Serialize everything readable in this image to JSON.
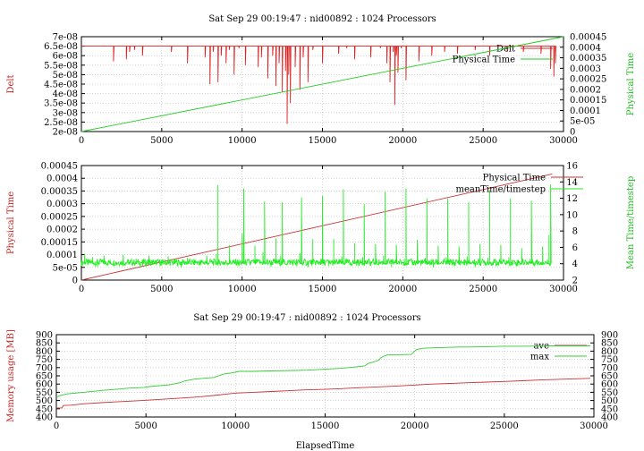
{
  "chart_data": [
    {
      "type": "line",
      "title": "Sat Sep 29 00:19:47 : nid00892 : 1024 Processors",
      "xlabel": "",
      "ylabel": "Delt",
      "y2label": "Physical Time",
      "xlim": [
        0,
        30000
      ],
      "ylim": [
        2e-08,
        7e-08
      ],
      "y2lim": [
        0,
        0.00045
      ],
      "x_ticks": [
        "0",
        "5000",
        "10000",
        "15000",
        "20000",
        "25000",
        "30000"
      ],
      "y_ticks": [
        "2e-08",
        "2.5e-08",
        "3e-08",
        "3.5e-08",
        "4e-08",
        "4.5e-08",
        "5e-08",
        "5.5e-08",
        "6e-08",
        "6.5e-08",
        "7e-08"
      ],
      "y2_ticks": [
        "0",
        "5e-05",
        "0.0001",
        "0.00015",
        "0.0002",
        "0.00025",
        "0.0003",
        "0.00035",
        "0.0004",
        "0.00045"
      ],
      "grid": true,
      "legend_position": "top-right",
      "colors": {
        "primary": "#dd2222",
        "secondary": "#22cc22",
        "axis_left": "#cc2222",
        "axis_right": "#22bb22"
      },
      "series": [
        {
          "name": "Delt",
          "axis": "left",
          "baseline": 6.5e-08,
          "x": [
            0,
            1700,
            2000,
            2100,
            2500,
            2800,
            3000,
            3200,
            3300,
            3600,
            3800,
            4200,
            5200,
            5600,
            6200,
            6600,
            7000,
            7700,
            8000,
            8200,
            8500,
            8700,
            9000,
            9200,
            9500,
            9800,
            10200,
            10600,
            11000,
            11200,
            11600,
            11900,
            12100,
            12300,
            12500,
            12700,
            12800,
            12900,
            13000,
            13300,
            13600,
            13800,
            14100,
            14400,
            15000,
            15600,
            16000,
            16500,
            17000,
            17500,
            18000,
            18600,
            19000,
            19200,
            19400,
            19500,
            19600,
            19700,
            19900,
            20200,
            20600,
            21000,
            21300,
            21800,
            22200,
            22600,
            23000,
            23400,
            24000,
            24500,
            25000,
            25400,
            26000,
            26500,
            27000,
            27500,
            28200,
            28600,
            28900,
            29200,
            29400,
            29500
          ],
          "values": [
            6.5e-08,
            6.5e-08,
            5.7e-08,
            6.5e-08,
            6.5e-08,
            5.8e-08,
            6.2e-08,
            6.5e-08,
            6.3e-08,
            6.5e-08,
            6e-08,
            6.5e-08,
            6.5e-08,
            6.2e-08,
            6.5e-08,
            5.6e-08,
            6.5e-08,
            5.9e-08,
            4.5e-08,
            6.2e-08,
            4.6e-08,
            6e-08,
            5.6e-08,
            6.3e-08,
            5e-08,
            6.4e-08,
            5.5e-08,
            6.5e-08,
            5.4e-08,
            5.9e-08,
            4.8e-08,
            6e-08,
            4.4e-08,
            5.6e-08,
            4.1e-08,
            5.2e-08,
            2.4e-08,
            5e-08,
            3.5e-08,
            5.4e-08,
            4.2e-08,
            5.9e-08,
            4.6e-08,
            6.3e-08,
            5.6e-08,
            6.5e-08,
            6.1e-08,
            6.4e-08,
            5.8e-08,
            6.5e-08,
            5.9e-08,
            6.4e-08,
            5.6e-08,
            4.6e-08,
            6.2e-08,
            3.4e-08,
            6e-08,
            5.1e-08,
            6.4e-08,
            4.7e-08,
            6.5e-08,
            5.7e-08,
            6.5e-08,
            6e-08,
            6.5e-08,
            6.2e-08,
            6.5e-08,
            6.1e-08,
            6.5e-08,
            6.3e-08,
            6.5e-08,
            6e-08,
            6.5e-08,
            6.2e-08,
            6.5e-08,
            6.2e-08,
            6.5e-08,
            6.1e-08,
            6.5e-08,
            5.3e-08,
            4.9e-08,
            5.6e-08
          ]
        },
        {
          "name": "Physical Time",
          "axis": "right",
          "x": [
            0,
            30000
          ],
          "values": [
            0,
            0.00045
          ]
        }
      ]
    },
    {
      "type": "line",
      "title": "",
      "xlabel": "",
      "ylabel": "Physical Time",
      "y2label": "Mean Time/timestep",
      "xlim": [
        0,
        30000
      ],
      "ylim": [
        0,
        0.00045
      ],
      "y2lim": [
        2,
        16
      ],
      "x_ticks": [
        "0",
        "5000",
        "10000",
        "15000",
        "20000",
        "25000",
        "30000"
      ],
      "y_ticks": [
        "0",
        "5e-05",
        "0.0001",
        "0.00015",
        "0.0002",
        "0.00025",
        "0.0003",
        "0.00035",
        "0.0004",
        "0.00045"
      ],
      "y2_ticks": [
        "2",
        "4",
        "6",
        "8",
        "10",
        "12",
        "14",
        "16"
      ],
      "grid": true,
      "legend_position": "top-right",
      "colors": {
        "primary": "#cc3333",
        "secondary": "#22ee22",
        "axis_left": "#cc2222",
        "axis_right": "#22bb22"
      },
      "series": [
        {
          "name": "Physical Time",
          "axis": "left",
          "x": [
            0,
            29300
          ],
          "values": [
            0,
            0.000417
          ]
        },
        {
          "name": "meanTime/timestep",
          "axis": "right",
          "baseline": 4.0,
          "x": [
            0,
            200,
            400,
            700,
            1000,
            1400,
            1800,
            2200,
            2600,
            3000,
            3400,
            3800,
            4200,
            4600,
            5000,
            5400,
            5800,
            6200,
            6600,
            7000,
            7400,
            7800,
            8200,
            8400,
            8500,
            8600,
            8900,
            9200,
            9500,
            9800,
            10000,
            10100,
            10200,
            10500,
            10800,
            11100,
            11300,
            11400,
            11500,
            11800,
            12100,
            12300,
            12400,
            12500,
            12800,
            13100,
            13400,
            13600,
            13700,
            13800,
            14100,
            14400,
            14700,
            14900,
            15000,
            15100,
            15400,
            15700,
            16000,
            16200,
            16300,
            16400,
            16700,
            17000,
            17300,
            17500,
            17600,
            17700,
            18000,
            18300,
            18600,
            18800,
            18900,
            19000,
            19300,
            19600,
            19900,
            20100,
            20200,
            20300,
            20600,
            20900,
            21200,
            21400,
            21500,
            21600,
            21900,
            22200,
            22500,
            22700,
            22800,
            22900,
            23200,
            23500,
            23800,
            24000,
            24100,
            24200,
            24500,
            24800,
            25100,
            25300,
            25400,
            25500,
            25800,
            26100,
            26400,
            26600,
            26700,
            26800,
            27100,
            27400,
            27700,
            27900,
            28000,
            28100,
            28400,
            28700,
            29000,
            29100,
            29200
          ],
          "values": [
            4.0,
            5.2,
            3.8,
            4.8,
            3.6,
            5.0,
            4.3,
            3.8,
            5.1,
            4.0,
            4.6,
            3.7,
            5.0,
            4.1,
            3.8,
            4.9,
            4.0,
            3.6,
            4.7,
            4.2,
            3.8,
            5.0,
            4.0,
            5.2,
            13.6,
            4.2,
            3.8,
            6.3,
            4.0,
            3.7,
            7.7,
            13.2,
            4.1,
            3.8,
            6.2,
            4.0,
            5.4,
            11.6,
            4.2,
            3.6,
            7.1,
            4.0,
            5.0,
            11.5,
            3.8,
            4.5,
            3.7,
            5.3,
            12.1,
            4.0,
            3.6,
            7.0,
            4.0,
            4.6,
            12.3,
            4.1,
            3.7,
            7.0,
            4.0,
            4.9,
            13.1,
            4.0,
            3.8,
            6.5,
            4.0,
            4.8,
            11.3,
            4.1,
            3.7,
            6.4,
            4.0,
            5.0,
            12.8,
            4.1,
            3.6,
            6.3,
            4.0,
            4.6,
            13.2,
            4.0,
            3.8,
            6.9,
            4.0,
            4.7,
            12.0,
            4.1,
            3.6,
            6.2,
            4.0,
            4.8,
            12.0,
            4.0,
            3.7,
            6.1,
            4.0,
            4.9,
            11.5,
            4.1,
            3.6,
            6.4,
            4.0,
            4.7,
            13.0,
            4.0,
            3.7,
            6.3,
            4.0,
            4.8,
            12.0,
            4.0,
            3.7,
            5.9,
            4.0,
            4.6,
            11.7,
            4.0,
            3.8,
            6.1,
            4.2,
            7.5,
            13.7
          ]
        }
      ]
    },
    {
      "type": "line",
      "title": "Sat Sep 29 00:19:47 : nid00892 : 1024 Processors",
      "xlabel": "ElapsedTime",
      "ylabel": "Memory usage [MB]",
      "y2label": "",
      "xlim": [
        0,
        30000
      ],
      "ylim": [
        400,
        900
      ],
      "y2lim": [
        400,
        900
      ],
      "x_ticks": [
        "0",
        "5000",
        "10000",
        "15000",
        "20000",
        "25000",
        "30000"
      ],
      "y_ticks": [
        "400",
        "450",
        "500",
        "550",
        "600",
        "650",
        "700",
        "750",
        "800",
        "850",
        "900"
      ],
      "y2_ticks": [
        "400",
        "450",
        "500",
        "550",
        "600",
        "650",
        "700",
        "750",
        "800",
        "850",
        "900"
      ],
      "grid": true,
      "legend_position": "top-right",
      "colors": {
        "primary": "#cc3333",
        "secondary": "#33cc33",
        "axis_left": "#cc2222",
        "axis_right": "#000000"
      },
      "series": [
        {
          "name": "ave",
          "axis": "left",
          "x": [
            0,
            300,
            400,
            800,
            1500,
            2500,
            3500,
            4800,
            6000,
            7000,
            8000,
            9000,
            10000,
            11000,
            12000,
            13000,
            14000,
            15000,
            16000,
            17000,
            18000,
            19000,
            20000,
            21000,
            22000,
            23000,
            24000,
            25000,
            26000,
            27000,
            28000,
            29000,
            29800
          ],
          "values": [
            455,
            455,
            470,
            472,
            480,
            487,
            493,
            500,
            508,
            515,
            523,
            533,
            545,
            550,
            555,
            560,
            565,
            568,
            573,
            578,
            583,
            588,
            594,
            600,
            604,
            608,
            612,
            616,
            620,
            625,
            629,
            632,
            635
          ]
        },
        {
          "name": "max",
          "axis": "left",
          "x": [
            0,
            200,
            600,
            1500,
            2600,
            3200,
            4000,
            4900,
            5200,
            6300,
            6900,
            7200,
            7700,
            8200,
            8800,
            9300,
            9800,
            10200,
            11000,
            12000,
            14000,
            15000,
            15800,
            16500,
            17200,
            17400,
            17700,
            18000,
            18100,
            18300,
            18500,
            19000,
            19800,
            20100,
            20500,
            21500,
            22500,
            23000,
            24000,
            25000,
            26000,
            27000,
            28000,
            28500,
            29800
          ],
          "values": [
            520,
            530,
            540,
            550,
            562,
            567,
            575,
            580,
            585,
            595,
            608,
            620,
            630,
            635,
            640,
            660,
            668,
            677,
            677,
            680,
            684,
            690,
            695,
            702,
            710,
            725,
            735,
            745,
            760,
            770,
            778,
            778,
            780,
            810,
            818,
            822,
            825,
            825,
            827,
            830,
            830,
            831,
            832,
            832,
            832
          ]
        }
      ]
    }
  ]
}
